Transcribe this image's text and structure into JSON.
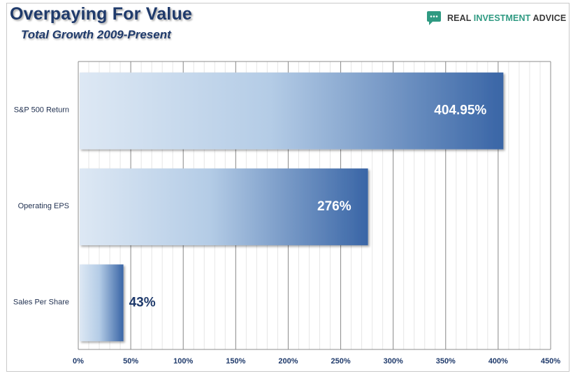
{
  "header": {
    "title": "Overpaying For Value",
    "subtitle": "Total Growth 2009-Present"
  },
  "brand": {
    "name_part1": "REAL ",
    "name_part2": "INVESTMENT",
    "name_part3": " ADVICE",
    "icon": "chat-bubble-icon",
    "colors": {
      "accent": "#2f9a82",
      "dark": "#3a3a3a"
    }
  },
  "chart_data": {
    "type": "bar",
    "orientation": "horizontal",
    "title": "Overpaying For Value",
    "subtitle": "Total Growth 2009-Present",
    "categories": [
      "S&P 500 Return",
      "Operating EPS",
      "Sales Per Share"
    ],
    "values": [
      404.95,
      276,
      43
    ],
    "data_labels": [
      "404.95%",
      "276%",
      "43%"
    ],
    "xlabel": "",
    "ylabel": "",
    "xlim": [
      0,
      450
    ],
    "xticks": [
      0,
      50,
      100,
      150,
      200,
      250,
      300,
      350,
      400,
      450
    ],
    "xtick_labels": [
      "0%",
      "50%",
      "100%",
      "150%",
      "200%",
      "250%",
      "300%",
      "350%",
      "400%",
      "450%"
    ],
    "grid": true,
    "legend": "none",
    "colors": {
      "bar_light": "#dde8f4",
      "bar_dark": "#3965a6",
      "label_inside": "#ffffff",
      "label_outside": "#1f3a6b"
    }
  }
}
